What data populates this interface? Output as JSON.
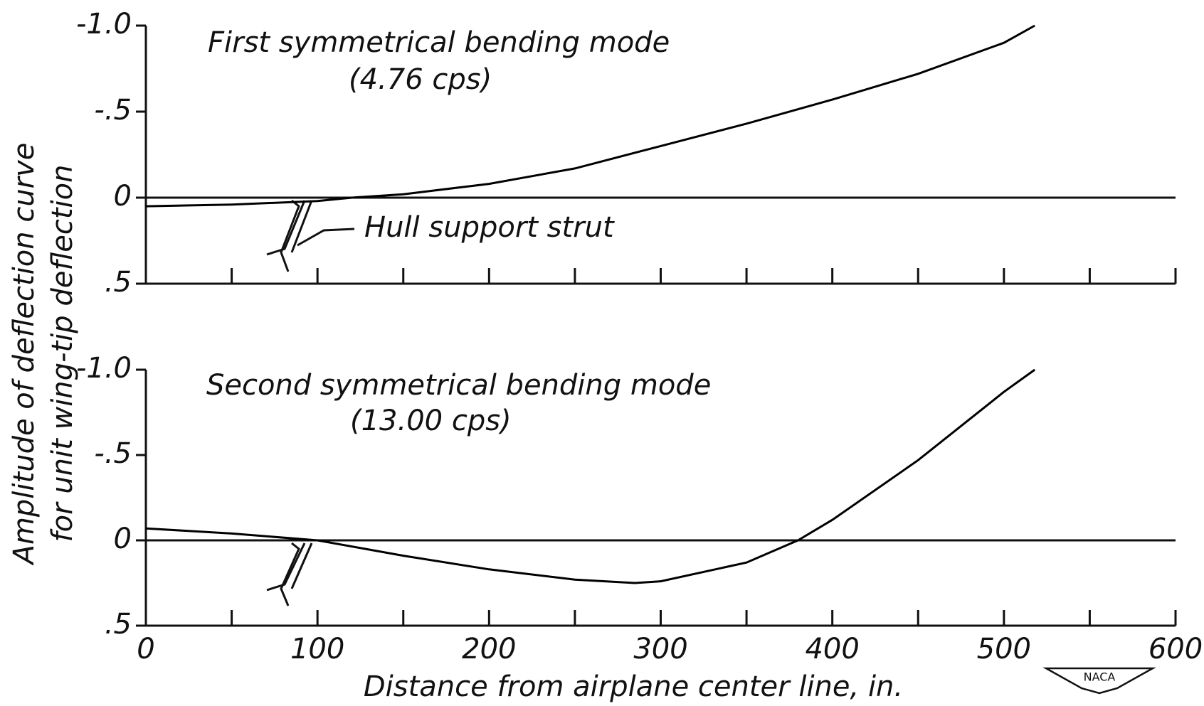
{
  "chart_data": [
    {
      "type": "line",
      "title": "First symmetrical bending mode",
      "subtitle": "(4.76 cps)",
      "annotation": "Hull support strut",
      "ylabel": [
        "Amplitude of deflection curve",
        "for unit wing-tip deflection"
      ],
      "x": [
        0,
        50,
        100,
        120,
        150,
        200,
        250,
        300,
        350,
        400,
        450,
        500,
        518
      ],
      "values": [
        0.05,
        0.04,
        0.02,
        0,
        -0.02,
        -0.08,
        -0.17,
        -0.3,
        -0.43,
        -0.57,
        -0.72,
        -0.9,
        -1.0
      ],
      "color": "#000000",
      "xlim": [
        0,
        600
      ],
      "xticks": [
        0,
        50,
        100,
        150,
        200,
        250,
        300,
        350,
        400,
        450,
        500,
        550,
        600
      ],
      "xtick_labels": false,
      "ylim": [
        0.5,
        -1
      ],
      "yticks": [
        {
          "value": -1,
          "label": "-1.0"
        },
        {
          "value": -0.5,
          "label": "-.5"
        },
        0,
        {
          "value": 0.5,
          "label": ".5"
        }
      ]
    },
    {
      "type": "line",
      "title": "Second symmetrical bending mode",
      "subtitle": "(13.00 cps)",
      "xlabel": "Distance from airplane center line, in.",
      "x": [
        0,
        50,
        100,
        150,
        200,
        250,
        285,
        300,
        350,
        380,
        400,
        450,
        500,
        518
      ],
      "values": [
        -0.07,
        -0.04,
        0,
        0.09,
        0.17,
        0.23,
        0.25,
        0.24,
        0.13,
        0,
        -0.12,
        -0.47,
        -0.87,
        -1.0
      ],
      "color": "#000000",
      "xlim": [
        0,
        600
      ],
      "xticks": [
        0,
        100,
        200,
        300,
        400,
        500,
        600
      ],
      "xminorticks": [
        50,
        150,
        250,
        350,
        450,
        550
      ],
      "xtick_labels": true,
      "ylim": [
        0.5,
        -1
      ],
      "yticks": [
        {
          "value": -1,
          "label": "-1.0"
        },
        {
          "value": -0.5,
          "label": "-.5"
        },
        0,
        {
          "value": 0.5,
          "label": ".5"
        }
      ]
    }
  ],
  "logo": "NACA"
}
